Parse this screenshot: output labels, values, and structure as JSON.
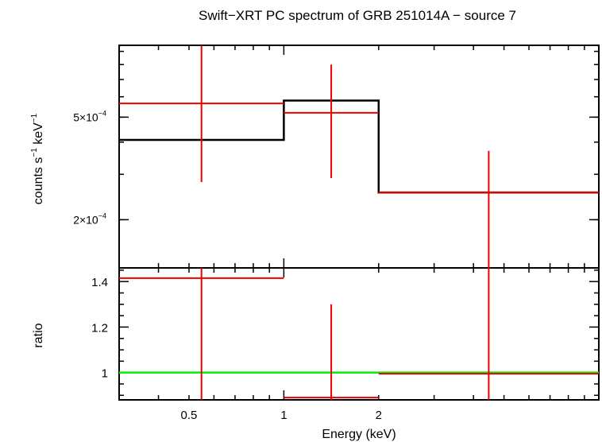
{
  "chart_data": [
    {
      "type": "line",
      "title": "Swift−XRT PC spectrum of GRB 251014A − source 7",
      "ylabel_parts": {
        "base": "counts s",
        "exp1": "−1",
        "mid": " keV",
        "exp2": "−1"
      },
      "xscale": "log",
      "yscale": "log",
      "xlim": [
        0.3,
        10
      ],
      "ylim": [
        0.00013,
        0.00095
      ],
      "yticks_labeled": [
        {
          "value": 0.0002,
          "mantissa": "2×10",
          "exp": "−4"
        },
        {
          "value": 0.0005,
          "mantissa": "5×10",
          "exp": "−4"
        }
      ],
      "data": [
        {
          "x_low": 0.3,
          "x_high": 1.0,
          "y": 0.000565,
          "y_low": 0.00028,
          "y_high": 0.00095
        },
        {
          "x_low": 1.0,
          "x_high": 2.0,
          "y": 0.00052,
          "y_low": 0.00029,
          "y_high": 0.0008
        },
        {
          "x_low": 2.0,
          "x_high": 10.0,
          "y": 0.000255,
          "y_low": 0.00013,
          "y_high": 0.00037
        }
      ],
      "model": [
        {
          "x_low": 0.3,
          "x_high": 1.0,
          "y": 0.000408
        },
        {
          "x_low": 1.0,
          "x_high": 2.0,
          "y": 0.00058
        },
        {
          "x_low": 2.0,
          "x_high": 10.0,
          "y": 0.000255
        }
      ],
      "colors": {
        "data": "#ee0000",
        "model": "#000000"
      }
    },
    {
      "type": "line",
      "ylabel": "ratio",
      "xlabel": "Energy (keV)",
      "xscale": "log",
      "xlim": [
        0.3,
        10
      ],
      "ylim": [
        0.88,
        1.46
      ],
      "xticks_labeled": [
        {
          "value": 0.5,
          "label": "0.5"
        },
        {
          "value": 1,
          "label": "1"
        },
        {
          "value": 2,
          "label": "2"
        }
      ],
      "yticks_labeled": [
        {
          "value": 1.0,
          "label": "1"
        },
        {
          "value": 1.2,
          "label": "1.2"
        },
        {
          "value": 1.4,
          "label": "1.4"
        }
      ],
      "data": [
        {
          "x_low": 0.3,
          "x_high": 1.0,
          "y": 1.415,
          "y_low": 0.88,
          "y_high": 1.46
        },
        {
          "x_low": 1.0,
          "x_high": 2.0,
          "y": 0.89,
          "y_low": 0.88,
          "y_high": 1.3
        },
        {
          "x_low": 2.0,
          "x_high": 10.0,
          "y": 0.995,
          "y_low": 0.88,
          "y_high": 1.46
        }
      ],
      "reference_line": {
        "y": 1.0,
        "color": "#00ee00"
      },
      "colors": {
        "data": "#ee0000"
      }
    }
  ]
}
